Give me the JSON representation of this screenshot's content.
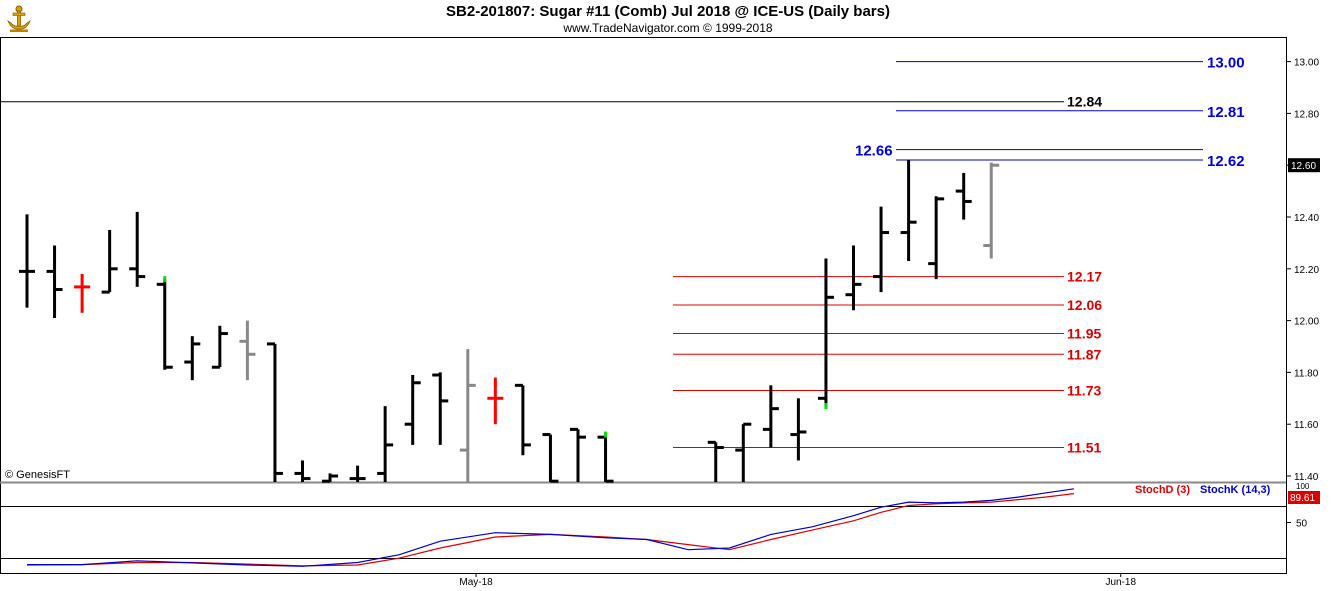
{
  "header": {
    "title": "SB2-201807:  Sugar #11 (Comb) Jul 2018 @ ICE-US  (Daily bars)",
    "subtitle": "www.TradeNavigator.com © 1999-2018",
    "logo_icon": "anchor-trophy-logo"
  },
  "watermark": "© GenesisFT",
  "colors": {
    "up_bar": "#000000",
    "down_bar": "#888888",
    "doji_bar": "#ff0000",
    "reversal_tick": "#00dd00",
    "support": "#dd0000",
    "resistance": "#0000bb",
    "stoch_d": "#dd0000",
    "stoch_k": "#0000cc"
  },
  "chart_data": {
    "type": "ohlc",
    "price_axis": {
      "ylim": [
        11.36,
        13.1
      ],
      "ticks": [
        "11.40",
        "11.60",
        "11.80",
        "12.00",
        "12.20",
        "12.40",
        "12.60",
        "12.80",
        "13.00"
      ]
    },
    "last_price": "12.60",
    "x_labels": [
      {
        "label": "May-18",
        "index": 16.3
      },
      {
        "label": "Jun-18",
        "index": 39.7
      }
    ],
    "bars": [
      {
        "i": 0,
        "o": 12.19,
        "h": 12.41,
        "l": 12.05,
        "c": 12.19,
        "color": "up"
      },
      {
        "i": 1,
        "o": 12.19,
        "h": 12.29,
        "l": 12.01,
        "c": 12.12,
        "color": "up"
      },
      {
        "i": 2,
        "o": 12.13,
        "h": 12.18,
        "l": 12.03,
        "c": 12.13,
        "color": "doji"
      },
      {
        "i": 3,
        "o": 12.11,
        "h": 12.35,
        "l": 12.11,
        "c": 12.2,
        "color": "up"
      },
      {
        "i": 4,
        "o": 12.2,
        "h": 12.42,
        "l": 12.13,
        "c": 12.17,
        "color": "up"
      },
      {
        "i": 5,
        "o": 12.14,
        "h": 12.16,
        "l": 11.81,
        "c": 11.82,
        "color": "up",
        "tick": 12.16
      },
      {
        "i": 6,
        "o": 11.84,
        "h": 11.94,
        "l": 11.77,
        "c": 11.91,
        "color": "up"
      },
      {
        "i": 7,
        "o": 11.82,
        "h": 11.98,
        "l": 11.82,
        "c": 11.95,
        "color": "up"
      },
      {
        "i": 8,
        "o": 11.92,
        "h": 12.0,
        "l": 11.77,
        "c": 11.87,
        "color": "down"
      },
      {
        "i": 9,
        "o": 11.91,
        "h": 11.91,
        "l": 11.36,
        "c": 11.41,
        "color": "up"
      },
      {
        "i": 10,
        "o": 11.41,
        "h": 11.46,
        "l": 11.36,
        "c": 11.39,
        "color": "up"
      },
      {
        "i": 11,
        "o": 11.38,
        "h": 11.41,
        "l": 11.36,
        "c": 11.4,
        "color": "up"
      },
      {
        "i": 12,
        "o": 11.39,
        "h": 11.44,
        "l": 11.36,
        "c": 11.39,
        "color": "up"
      },
      {
        "i": 13,
        "o": 11.41,
        "h": 11.67,
        "l": 11.36,
        "c": 11.52,
        "color": "up"
      },
      {
        "i": 14,
        "o": 11.6,
        "h": 11.79,
        "l": 11.52,
        "c": 11.76,
        "color": "up"
      },
      {
        "i": 15,
        "o": 11.79,
        "h": 11.8,
        "l": 11.52,
        "c": 11.69,
        "color": "up"
      },
      {
        "i": 16,
        "o": 11.5,
        "h": 11.89,
        "l": 11.36,
        "c": 11.75,
        "color": "down"
      },
      {
        "i": 17,
        "o": 11.7,
        "h": 11.78,
        "l": 11.6,
        "c": 11.7,
        "color": "doji"
      },
      {
        "i": 18,
        "o": 11.75,
        "h": 11.75,
        "l": 11.48,
        "c": 11.52,
        "color": "up"
      },
      {
        "i": 19,
        "o": 11.56,
        "h": 11.56,
        "l": 11.36,
        "c": 11.38,
        "color": "up"
      },
      {
        "i": 20,
        "o": 11.58,
        "h": 11.58,
        "l": 11.36,
        "c": 11.55,
        "color": "up"
      },
      {
        "i": 21,
        "o": 11.55,
        "h": 11.55,
        "l": 11.36,
        "c": 11.38,
        "color": "up",
        "tick": 11.56
      },
      {
        "i": 25,
        "o": 11.53,
        "h": 11.53,
        "l": 11.36,
        "c": 11.51,
        "color": "up"
      },
      {
        "i": 26,
        "o": 11.5,
        "h": 11.6,
        "l": 11.36,
        "c": 11.6,
        "color": "up"
      },
      {
        "i": 27,
        "o": 11.58,
        "h": 11.75,
        "l": 11.51,
        "c": 11.66,
        "color": "up"
      },
      {
        "i": 28,
        "o": 11.56,
        "h": 11.7,
        "l": 11.46,
        "c": 11.57,
        "color": "up"
      },
      {
        "i": 29,
        "o": 11.7,
        "h": 12.24,
        "l": 11.67,
        "c": 12.09,
        "color": "up",
        "tick": 11.67
      },
      {
        "i": 30,
        "o": 12.1,
        "h": 12.29,
        "l": 12.04,
        "c": 12.14,
        "color": "up"
      },
      {
        "i": 31,
        "o": 12.17,
        "h": 12.44,
        "l": 12.11,
        "c": 12.34,
        "color": "up"
      },
      {
        "i": 32,
        "o": 12.34,
        "h": 12.62,
        "l": 12.23,
        "c": 12.38,
        "color": "up"
      },
      {
        "i": 33,
        "o": 12.22,
        "h": 12.48,
        "l": 12.16,
        "c": 12.47,
        "color": "up"
      },
      {
        "i": 34,
        "o": 12.5,
        "h": 12.57,
        "l": 12.39,
        "c": 12.46,
        "color": "up"
      },
      {
        "i": 35,
        "o": 12.29,
        "h": 12.61,
        "l": 12.24,
        "c": 12.6,
        "color": "down"
      }
    ],
    "resistance_lines": [
      {
        "label": "13.00",
        "value": 13.0
      },
      {
        "label": "12.81",
        "value": 12.81
      },
      {
        "label": "12.66",
        "value": 12.66
      },
      {
        "label": "12.62",
        "value": 12.62
      }
    ],
    "reference_line": {
      "label": "12.84",
      "value": 12.845
    },
    "support_lines": [
      {
        "label": "12.17",
        "value": 12.17
      },
      {
        "label": "12.06",
        "value": 12.06
      },
      {
        "label": "11.95",
        "value": 11.95
      },
      {
        "label": "11.87",
        "value": 11.87
      },
      {
        "label": "11.73",
        "value": 11.73
      },
      {
        "label": "11.51",
        "value": 11.51
      }
    ],
    "stochastic": {
      "ylim": [
        0,
        100
      ],
      "ticks": [
        "50"
      ],
      "top_label": "100",
      "d_label": "StochD (3)",
      "k_label": "StochK (14,3)",
      "last_value": "89.61",
      "k": [
        [
          0,
          0.5
        ],
        [
          2,
          0.5
        ],
        [
          4,
          5
        ],
        [
          6,
          2.5
        ],
        [
          8,
          0
        ],
        [
          10,
          -1.5
        ],
        [
          12,
          3
        ],
        [
          13.5,
          12
        ],
        [
          15,
          28
        ],
        [
          17,
          38
        ],
        [
          19,
          36
        ],
        [
          21,
          32
        ],
        [
          22.5,
          30
        ],
        [
          24,
          18
        ],
        [
          25.5,
          20
        ],
        [
          27,
          36
        ],
        [
          28.5,
          45
        ],
        [
          30,
          58
        ],
        [
          31,
          68
        ],
        [
          32,
          74
        ],
        [
          33,
          73
        ],
        [
          34,
          74
        ],
        [
          35,
          76
        ],
        [
          36,
          80
        ],
        [
          37,
          85
        ],
        [
          38,
          89.61
        ]
      ],
      "d": [
        [
          0,
          0
        ],
        [
          2,
          0.5
        ],
        [
          4,
          3
        ],
        [
          6,
          3
        ],
        [
          8,
          1
        ],
        [
          10,
          -1
        ],
        [
          12,
          0
        ],
        [
          13.5,
          8
        ],
        [
          15,
          20
        ],
        [
          17,
          33
        ],
        [
          19,
          36
        ],
        [
          21,
          33
        ],
        [
          22.5,
          30
        ],
        [
          24,
          24
        ],
        [
          25.5,
          18
        ],
        [
          27,
          30
        ],
        [
          28.5,
          41
        ],
        [
          30,
          52
        ],
        [
          31,
          62
        ],
        [
          32,
          70
        ],
        [
          33,
          72
        ],
        [
          34,
          73
        ],
        [
          35,
          74
        ],
        [
          36,
          77
        ],
        [
          37,
          80
        ],
        [
          38,
          84
        ]
      ]
    }
  }
}
